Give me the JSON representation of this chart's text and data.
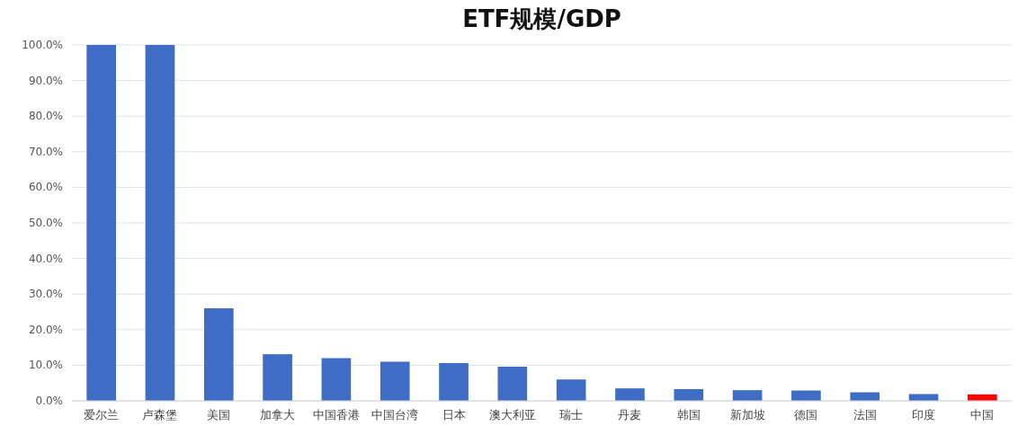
{
  "chart_data": {
    "type": "bar",
    "title": "ETF规模/GDP",
    "categories": [
      "爱尔兰",
      "卢森堡",
      "美国",
      "加拿大",
      "中国香港",
      "中国台湾",
      "日本",
      "澳大利亚",
      "瑞士",
      "丹麦",
      "韩国",
      "新加坡",
      "德国",
      "法国",
      "印度",
      "中国"
    ],
    "values": [
      100,
      100,
      26,
      13.1,
      12,
      11,
      10.6,
      9.6,
      6,
      3.5,
      3.3,
      3,
      2.9,
      2.4,
      1.9,
      1.8
    ],
    "colors": [
      "#3f6cc4",
      "#3f6cc4",
      "#3f6cc4",
      "#3f6cc4",
      "#3f6cc4",
      "#3f6cc4",
      "#3f6cc4",
      "#3f6cc4",
      "#3f6cc4",
      "#3f6cc4",
      "#3f6cc4",
      "#3f6cc4",
      "#3f6cc4",
      "#3f6cc4",
      "#3f6cc4",
      "#ff0000"
    ],
    "ylim": [
      0,
      100
    ],
    "yticks": [
      {
        "value": 0,
        "label": "0.0%"
      },
      {
        "value": 10,
        "label": "10.0%"
      },
      {
        "value": 20,
        "label": "20.0%"
      },
      {
        "value": 30,
        "label": "30.0%"
      },
      {
        "value": 40,
        "label": "40.0%"
      },
      {
        "value": 50,
        "label": "50.0%"
      },
      {
        "value": 60,
        "label": "60.0%"
      },
      {
        "value": 70,
        "label": "70.0%"
      },
      {
        "value": 80,
        "label": "80.0%"
      },
      {
        "value": 90,
        "label": "90.0%"
      },
      {
        "value": 100,
        "label": "100.0%"
      }
    ],
    "grid": "y"
  }
}
